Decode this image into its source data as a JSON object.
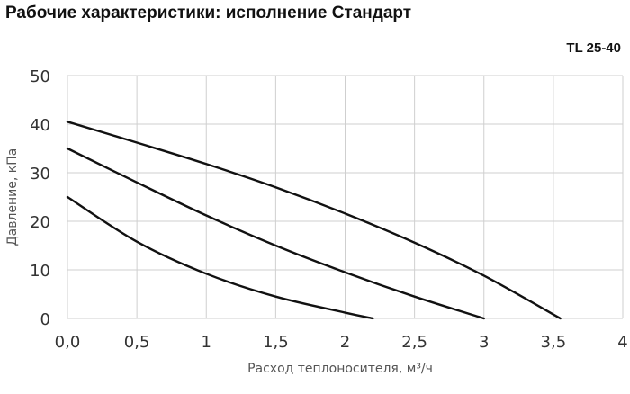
{
  "chart_data": {
    "type": "line",
    "title": "Рабочие характеристики: исполнение Стандарт",
    "subtitle": "TL 25-40",
    "xlabel": "Расход теплоносителя, м³/ч",
    "ylabel": "Давление, кПа",
    "xlim": [
      0,
      4
    ],
    "ylim": [
      0,
      50
    ],
    "x_ticks": [
      0,
      0.5,
      1,
      1.5,
      2,
      2.5,
      3,
      3.5,
      4
    ],
    "x_tick_labels": [
      "0,0",
      "0,5",
      "1",
      "1,5",
      "2",
      "2,5",
      "3",
      "3,5",
      "4"
    ],
    "y_ticks": [
      0,
      10,
      20,
      30,
      40,
      50
    ],
    "y_tick_labels": [
      "0",
      "10",
      "20",
      "30",
      "40",
      "50"
    ],
    "grid": true,
    "series": [
      {
        "x": [
          0,
          0.5,
          1,
          1.5,
          2,
          2.5,
          3,
          3.55
        ],
        "y": [
          40.5,
          36.2,
          31.8,
          27,
          21.6,
          15.6,
          8.8,
          0
        ]
      },
      {
        "x": [
          0,
          0.5,
          1,
          1.5,
          2,
          2.5,
          3
        ],
        "y": [
          35,
          28,
          21.2,
          15,
          9.5,
          4.5,
          0
        ]
      },
      {
        "x": [
          0,
          0.5,
          1,
          1.5,
          2,
          2.2
        ],
        "y": [
          25,
          15.8,
          9.2,
          4.5,
          1.2,
          0
        ]
      }
    ]
  }
}
